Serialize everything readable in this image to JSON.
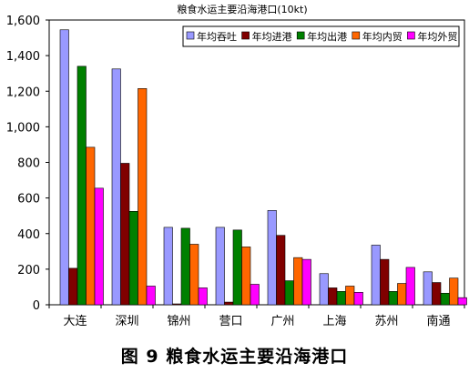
{
  "chart_data": {
    "type": "bar",
    "title": "粮食水运主要沿海港口(10kt)",
    "xlabel": "",
    "ylabel": "",
    "ylim": [
      0,
      1600
    ],
    "yticks": [
      0,
      200,
      400,
      600,
      800,
      1000,
      1200,
      1400,
      1600
    ],
    "ytick_labels": [
      "0",
      "200",
      "400",
      "600",
      "800",
      "1,000",
      "1,200",
      "1,400",
      "1,600"
    ],
    "grid": false,
    "legend": "top-right",
    "categories": [
      "大连",
      "深圳",
      "锦州",
      "营口",
      "广州",
      "上海",
      "苏州",
      "南通"
    ],
    "series": [
      {
        "name": "年均吞吐",
        "color": "#9999ff",
        "values": [
          1545,
          1325,
          435,
          435,
          530,
          175,
          335,
          185
        ]
      },
      {
        "name": "年均进港",
        "color": "#800000",
        "values": [
          205,
          795,
          5,
          15,
          390,
          95,
          255,
          125
        ]
      },
      {
        "name": "年均出港",
        "color": "#008000",
        "values": [
          1340,
          525,
          430,
          420,
          135,
          75,
          75,
          65
        ]
      },
      {
        "name": "年均内贸",
        "color": "#ff6600",
        "values": [
          885,
          1215,
          340,
          325,
          265,
          105,
          120,
          150
        ]
      },
      {
        "name": "年均外贸",
        "color": "#ff00ff",
        "values": [
          655,
          105,
          95,
          115,
          255,
          70,
          210,
          40
        ]
      }
    ]
  },
  "caption": "图 9  粮食水运主要沿海港口"
}
